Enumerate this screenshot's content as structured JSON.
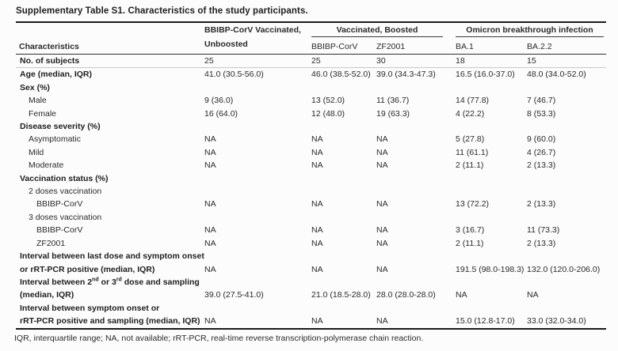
{
  "title": "Supplementary Table S1. Characteristics of the study participants.",
  "footnote": "IQR, interquartile range; NA, not available; rRT-PCR, real-time reverse transcription-polymerase chain reaction.",
  "colors": {
    "background": "#fcfcfc",
    "text": "#2a2a2a",
    "rule_dark": "#1a1a1a",
    "rule_medium": "#2e2e2e",
    "rule_light": "#c9c9c9"
  },
  "table": {
    "header": {
      "characteristics": "Characteristics",
      "group_single_line1": "BBIBP-CorV Vaccinated,",
      "group_single_line2": "Unboosted",
      "group_boosted": "Vaccinated, Boosted",
      "group_boosted_cols": [
        "BBIBP-CorV",
        "ZF2001"
      ],
      "group_omicron": "Omicron breakthrough infection",
      "group_omicron_cols": [
        "BA.1",
        "BA.2.2"
      ]
    },
    "rows": [
      {
        "label": "No. of subjects",
        "indent": 0,
        "bold": true,
        "values": [
          "25",
          "25",
          "30",
          "18",
          "15"
        ]
      },
      {
        "label": "Age (median, IQR)",
        "indent": 0,
        "bold": true,
        "values": [
          "41.0 (30.5-56.0)",
          "46.0 (38.5-52.0)",
          "39.0 (34.3-47.3)",
          "16.5 (16.0-37.0)",
          "48.0 (34.0-52.0)"
        ]
      },
      {
        "label": "Sex (%)",
        "indent": 0,
        "bold": true,
        "values": null
      },
      {
        "label": "Male",
        "indent": 1,
        "bold": false,
        "values": [
          "9 (36.0)",
          "13 (52.0)",
          "11 (36.7)",
          "14 (77.8)",
          "7 (46.7)"
        ]
      },
      {
        "label": "Female",
        "indent": 1,
        "bold": false,
        "values": [
          "16 (64.0)",
          "12 (48.0)",
          "19 (63.3)",
          "4 (22.2)",
          "8 (53.3)"
        ]
      },
      {
        "label": "Disease severity (%)",
        "indent": 0,
        "bold": true,
        "values": null
      },
      {
        "label": "Asymptomatic",
        "indent": 1,
        "bold": false,
        "values": [
          "NA",
          "NA",
          "NA",
          "5 (27.8)",
          "9 (60.0)"
        ]
      },
      {
        "label": "Mild",
        "indent": 1,
        "bold": false,
        "values": [
          "NA",
          "NA",
          "NA",
          "11 (61.1)",
          "4 (26.7)"
        ]
      },
      {
        "label": "Moderate",
        "indent": 1,
        "bold": false,
        "values": [
          "NA",
          "NA",
          "NA",
          "2 (11.1)",
          "2 (13.3)"
        ]
      },
      {
        "label": "Vaccination status (%)",
        "indent": 0,
        "bold": true,
        "values": null
      },
      {
        "label": "2 doses vaccination",
        "indent": 1,
        "bold": false,
        "values": null
      },
      {
        "label": "BBIBP-CorV",
        "indent": 2,
        "bold": false,
        "values": [
          "NA",
          "NA",
          "NA",
          "13 (72.2)",
          "2 (13.3)"
        ]
      },
      {
        "label": "3 doses vaccination",
        "indent": 1,
        "bold": false,
        "values": null
      },
      {
        "label": "BBIBP-CorV",
        "indent": 2,
        "bold": false,
        "values": [
          "NA",
          "NA",
          "NA",
          "3 (16.7)",
          "11 (73.3)"
        ]
      },
      {
        "label": "ZF2001",
        "indent": 2,
        "bold": false,
        "values": [
          "NA",
          "NA",
          "NA",
          "2 (11.1)",
          "2 (13.3)"
        ]
      },
      {
        "label": "Interval between last dose and symptom onset",
        "indent": 0,
        "bold": true,
        "values": null
      },
      {
        "label": "or rRT-PCR positive (median, IQR)",
        "indent": 0,
        "bold": true,
        "values": [
          "NA",
          "NA",
          "NA",
          "191.5 (98.0-198.3)",
          "132.0 (120.0-206.0)"
        ]
      },
      {
        "segments": [
          {
            "t": "Interval between 2"
          },
          {
            "t": "nd",
            "sup": true
          },
          {
            "t": " or 3"
          },
          {
            "t": "rd",
            "sup": true
          },
          {
            "t": " dose and sampling"
          }
        ],
        "indent": 0,
        "bold": true,
        "values": null
      },
      {
        "label": "(median, IQR)",
        "indent": 0,
        "bold": true,
        "values": [
          "39.0 (27.5-41.0)",
          "21.0 (18.5-28.0)",
          "28.0 (28.0-28.0)",
          "NA",
          "NA"
        ]
      },
      {
        "label": "Interval between symptom onset or",
        "indent": 0,
        "bold": true,
        "values": null
      },
      {
        "label": "rRT-PCR positive and sampling (median, IQR)",
        "indent": 0,
        "bold": true,
        "values": [
          "NA",
          "NA",
          "NA",
          "15.0 (12.8-17.0)",
          "33.0 (32.0-34.0)"
        ]
      }
    ]
  }
}
